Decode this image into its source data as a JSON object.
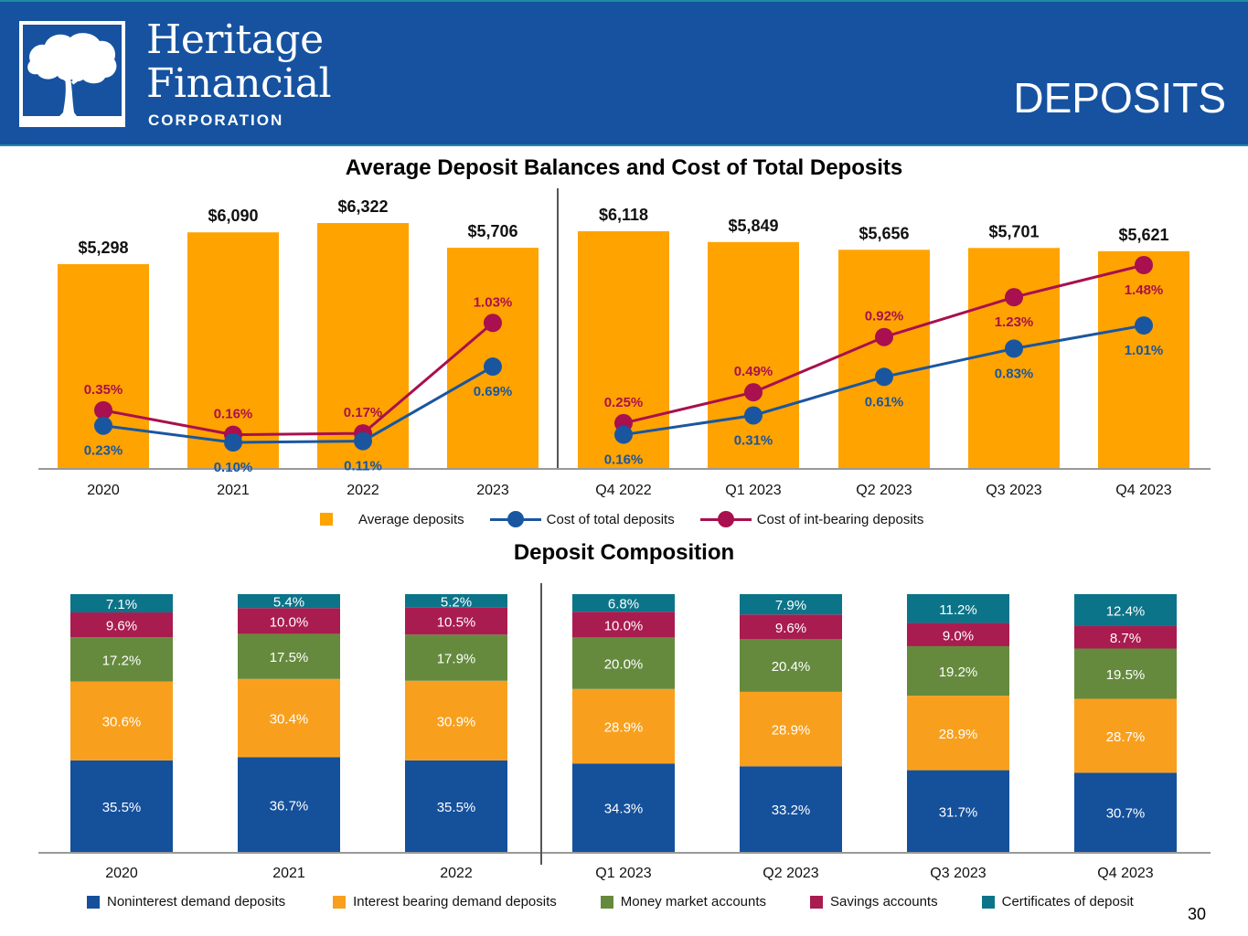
{
  "header": {
    "brand_line1": "Heritage",
    "brand_line2": "Financial",
    "brand_line3": "CORPORATION",
    "page_title": "DEPOSITS",
    "logo_icon": "tree-icon"
  },
  "colors": {
    "header_bg": "#1652a0",
    "header_border": "#1d8ca3",
    "bar_orange": "#ffa300",
    "line_blue": "#1a56a0",
    "line_red": "#a8104f",
    "stack_blue": "#15509b",
    "stack_orange": "#f8a01e",
    "stack_green": "#658a3e",
    "stack_red": "#a91c4f",
    "stack_teal": "#0c7489"
  },
  "chart_data": [
    {
      "type": "bar",
      "title": "Average Deposit Balances and Cost of Total Deposits",
      "categories": [
        "2020",
        "2021",
        "2022",
        "2023",
        "Q4 2022",
        "Q1 2023",
        "Q2 2023",
        "Q3 2023",
        "Q4 2023"
      ],
      "divider_after_index": 3,
      "series": [
        {
          "name": "Average deposits",
          "kind": "bar",
          "values": [
            5298,
            6090,
            6322,
            5706,
            6118,
            5849,
            5656,
            5701,
            5621
          ],
          "labels": [
            "$5,298",
            "$6,090",
            "$6,322",
            "$5,706",
            "$6,118",
            "$5,849",
            "$5,656",
            "$5,701",
            "$5,621"
          ]
        },
        {
          "name": "Cost of total deposits",
          "kind": "line",
          "values": [
            0.23,
            0.1,
            0.11,
            0.69,
            0.16,
            0.31,
            0.61,
            0.83,
            1.01
          ],
          "labels": [
            "0.23%",
            "0.10%",
            "0.11%",
            "0.69%",
            "0.16%",
            "0.31%",
            "0.61%",
            "0.83%",
            "1.01%"
          ]
        },
        {
          "name": "Cost of int-bearing deposits",
          "kind": "line",
          "values": [
            0.35,
            0.16,
            0.17,
            1.03,
            0.25,
            0.49,
            0.92,
            1.23,
            1.48
          ],
          "labels": [
            "0.35%",
            "0.16%",
            "0.17%",
            "1.03%",
            "0.25%",
            "0.49%",
            "0.92%",
            "1.23%",
            "1.48%"
          ]
        }
      ],
      "xlabel": "",
      "ylabel": "",
      "ylim_bar": [
        0,
        6600
      ],
      "ylim_line": [
        0,
        2.5
      ],
      "grid": false,
      "legend": "bottom-center",
      "legend_entries": [
        "Average deposits",
        "Cost of total deposits",
        "Cost of int-bearing deposits"
      ]
    },
    {
      "type": "bar",
      "stacked": true,
      "title": "Deposit Composition",
      "categories": [
        "2020",
        "2021",
        "2022",
        "Q1 2023",
        "Q2 2023",
        "Q3 2023",
        "Q4 2023"
      ],
      "divider_after_index": 2,
      "series": [
        {
          "name": "Noninterest demand deposits",
          "values": [
            35.5,
            36.7,
            35.5,
            34.3,
            33.2,
            31.7,
            30.7
          ],
          "labels": [
            "35.5%",
            "36.7%",
            "35.5%",
            "34.3%",
            "33.2%",
            "31.7%",
            "30.7%"
          ]
        },
        {
          "name": "Interest bearing demand deposits",
          "values": [
            30.6,
            30.4,
            30.9,
            28.9,
            28.9,
            28.9,
            28.7
          ],
          "labels": [
            "30.6%",
            "30.4%",
            "30.9%",
            "28.9%",
            "28.9%",
            "28.9%",
            "28.7%"
          ]
        },
        {
          "name": "Money market accounts",
          "values": [
            17.2,
            17.5,
            17.9,
            20.0,
            20.4,
            19.2,
            19.5
          ],
          "labels": [
            "17.2%",
            "17.5%",
            "17.9%",
            "20.0%",
            "20.4%",
            "19.2%",
            "19.5%"
          ]
        },
        {
          "name": "Savings accounts",
          "values": [
            9.6,
            10.0,
            10.5,
            10.0,
            9.6,
            9.0,
            8.7
          ],
          "labels": [
            "9.6%",
            "10.0%",
            "10.5%",
            "10.0%",
            "9.6%",
            "9.0%",
            "8.7%"
          ]
        },
        {
          "name": "Certificates of deposit",
          "values": [
            7.1,
            5.4,
            5.2,
            6.8,
            7.9,
            11.2,
            12.4
          ],
          "labels": [
            "7.1%",
            "5.4%",
            "5.2%",
            "6.8%",
            "7.9%",
            "11.2%",
            "12.4%"
          ]
        }
      ],
      "xlabel": "",
      "ylabel": "",
      "ylim": [
        0,
        100
      ],
      "grid": false,
      "legend": "bottom-center",
      "legend_entries": [
        "Noninterest demand deposits",
        "Interest bearing demand deposits",
        "Money market accounts",
        "Savings accounts",
        "Certificates of deposit"
      ]
    }
  ],
  "legend1": {
    "avg": "Average deposits",
    "total": "Cost of total deposits",
    "int": "Cost of int-bearing deposits"
  },
  "legend2": {
    "items": [
      "Noninterest demand deposits",
      "Interest bearing demand deposits",
      "Money market accounts",
      "Savings accounts",
      "Certificates of deposit"
    ]
  },
  "page_number": "30"
}
